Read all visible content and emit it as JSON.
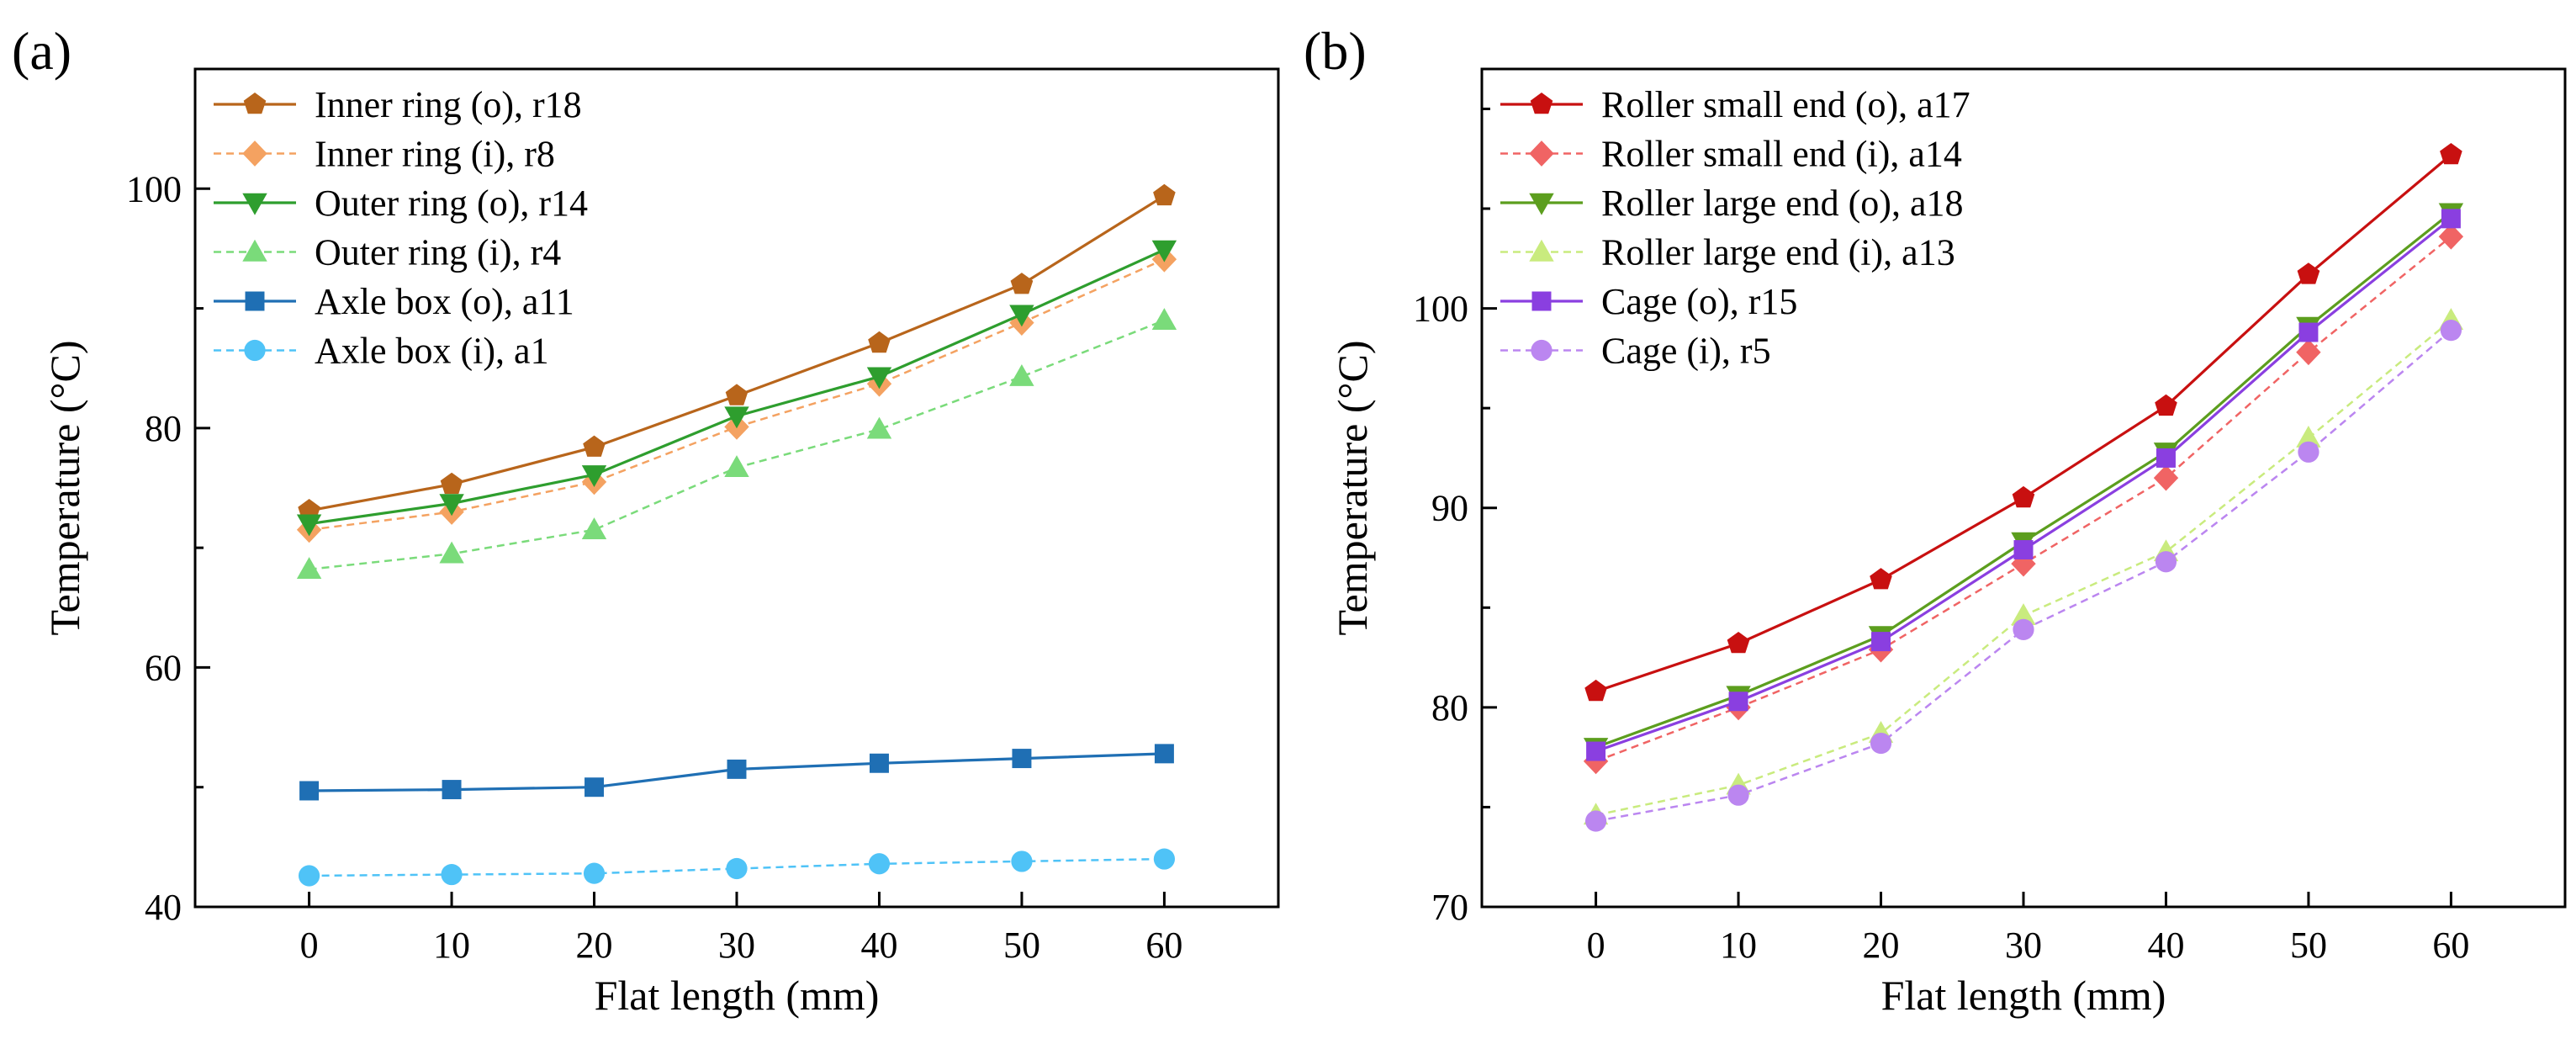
{
  "chart_data": [
    {
      "type": "line",
      "panel_label": "(a)",
      "xlabel": "Flat length (mm)",
      "ylabel": "Temperature (°C)",
      "xlim": [
        -8,
        68
      ],
      "ylim": [
        40,
        110
      ],
      "x_ticks": [
        "0",
        "10",
        "20",
        "30",
        "40",
        "50",
        "60"
      ],
      "y_ticks": [
        "40",
        "60",
        "80",
        "100"
      ],
      "legend_position": "top-left",
      "x": [
        0,
        10,
        20,
        30,
        40,
        50,
        60
      ],
      "series": [
        {
          "name": "Inner ring (o), r18",
          "color": "#B8651B",
          "marker": "pentagon",
          "dashed": false,
          "values": [
            73.1,
            75.3,
            78.4,
            82.7,
            87.1,
            92.0,
            99.4
          ]
        },
        {
          "name": "Inner ring (i), r8",
          "color": "#F4A261",
          "marker": "diamond",
          "dashed": true,
          "values": [
            71.5,
            73.0,
            75.5,
            80.1,
            83.7,
            88.8,
            94.1
          ]
        },
        {
          "name": "Outer ring (o), r14",
          "color": "#2E9E2E",
          "marker": "triangle-down",
          "dashed": false,
          "values": [
            72.0,
            73.7,
            76.1,
            81.0,
            84.3,
            89.5,
            94.9
          ]
        },
        {
          "name": "Outer ring (i), r4",
          "color": "#7ADB7A",
          "marker": "triangle-up",
          "dashed": true,
          "values": [
            68.2,
            69.5,
            71.5,
            76.7,
            79.9,
            84.3,
            89.0
          ]
        },
        {
          "name": "Axle box (o), a11",
          "color": "#1F6FB4",
          "marker": "square",
          "dashed": false,
          "values": [
            49.7,
            49.8,
            50.0,
            51.5,
            52.0,
            52.4,
            52.8
          ]
        },
        {
          "name": "Axle box (i), a1",
          "color": "#4FC3F7",
          "marker": "circle",
          "dashed": true,
          "values": [
            42.6,
            42.7,
            42.8,
            43.2,
            43.6,
            43.8,
            44.0
          ]
        }
      ]
    },
    {
      "type": "line",
      "panel_label": "(b)",
      "xlabel": "Flat length (mm)",
      "ylabel": "Temperature (°C)",
      "xlim": [
        -8,
        68
      ],
      "ylim": [
        70,
        112
      ],
      "x_ticks": [
        "0",
        "10",
        "20",
        "30",
        "40",
        "50",
        "60"
      ],
      "y_ticks": [
        "70",
        "80",
        "90",
        "100"
      ],
      "legend_position": "top-left",
      "x": [
        0,
        10,
        20,
        30,
        40,
        50,
        60
      ],
      "series": [
        {
          "name": "Roller small end (o), a17",
          "color": "#C81010",
          "marker": "pentagon",
          "dashed": false,
          "values": [
            80.8,
            83.2,
            86.4,
            90.5,
            95.1,
            101.7,
            107.7
          ]
        },
        {
          "name": "Roller small end (i), a14",
          "color": "#F06464",
          "marker": "diamond",
          "dashed": true,
          "values": [
            77.3,
            80.0,
            82.9,
            87.2,
            91.5,
            97.8,
            103.6
          ]
        },
        {
          "name": "Roller large end (o), a18",
          "color": "#5C9E1E",
          "marker": "triangle-down",
          "dashed": false,
          "values": [
            78.0,
            80.6,
            83.6,
            88.3,
            92.8,
            99.1,
            104.8
          ]
        },
        {
          "name": "Roller large end (i), a13",
          "color": "#C9EB7E",
          "marker": "triangle-up",
          "dashed": true,
          "values": [
            74.6,
            76.1,
            78.7,
            84.6,
            87.8,
            93.5,
            99.4
          ]
        },
        {
          "name": "Cage (o), r15",
          "color": "#8A3FE0",
          "marker": "square",
          "dashed": false,
          "values": [
            77.8,
            80.3,
            83.3,
            87.9,
            92.5,
            98.8,
            104.5
          ]
        },
        {
          "name": "Cage (i), r5",
          "color": "#BB86F0",
          "marker": "circle",
          "dashed": true,
          "values": [
            74.3,
            75.6,
            78.2,
            83.9,
            87.3,
            92.8,
            98.9
          ]
        }
      ]
    }
  ]
}
